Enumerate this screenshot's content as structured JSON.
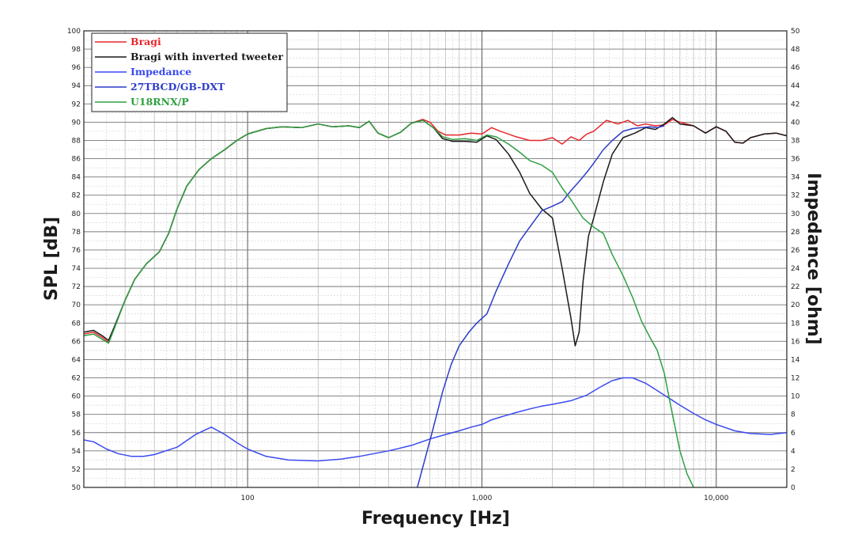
{
  "chart_data": {
    "type": "line",
    "title": "",
    "xlabel": "Frequency [Hz]",
    "ylabel": "SPL [dB]",
    "ylabel_right": "Impedance [ohm]",
    "x_scale": "log",
    "xlim": [
      20,
      20000
    ],
    "ylim": [
      50,
      100
    ],
    "ylim_right": [
      0,
      50
    ],
    "x_tick_labels": [
      {
        "x": 100,
        "label": "100"
      },
      {
        "x": 1000,
        "label": "1,000"
      },
      {
        "x": 10000,
        "label": "10,000"
      }
    ],
    "y_ticks": [
      50,
      52,
      54,
      56,
      58,
      60,
      62,
      64,
      66,
      68,
      70,
      72,
      74,
      76,
      78,
      80,
      82,
      84,
      86,
      88,
      90,
      92,
      94,
      96,
      98,
      100
    ],
    "y_ticks_right": [
      0,
      2,
      4,
      6,
      8,
      10,
      12,
      14,
      16,
      18,
      20,
      22,
      24,
      26,
      28,
      30,
      32,
      34,
      36,
      38,
      40,
      42,
      44,
      46,
      48,
      50
    ],
    "grid": true,
    "legend_position": "top-left",
    "series": [
      {
        "name": "Bragi",
        "axis": "left",
        "color": "#e8262a",
        "points": [
          [
            20,
            66.8
          ],
          [
            22,
            67
          ],
          [
            24,
            66.4
          ],
          [
            25.5,
            65.9
          ],
          [
            27,
            67.5
          ],
          [
            30,
            70.5
          ],
          [
            33,
            72.8
          ],
          [
            37,
            74.5
          ],
          [
            42,
            75.8
          ],
          [
            46,
            77.8
          ],
          [
            50,
            80.5
          ],
          [
            55,
            83
          ],
          [
            62,
            84.8
          ],
          [
            70,
            86
          ],
          [
            80,
            87
          ],
          [
            90,
            88
          ],
          [
            100,
            88.7
          ],
          [
            120,
            89.3
          ],
          [
            140,
            89.5
          ],
          [
            170,
            89.4
          ],
          [
            200,
            89.8
          ],
          [
            230,
            89.5
          ],
          [
            270,
            89.6
          ],
          [
            300,
            89.4
          ],
          [
            330,
            90.1
          ],
          [
            360,
            88.8
          ],
          [
            400,
            88.3
          ],
          [
            450,
            88.9
          ],
          [
            500,
            89.9
          ],
          [
            560,
            90.3
          ],
          [
            600,
            90.0
          ],
          [
            650,
            89.0
          ],
          [
            700,
            88.6
          ],
          [
            800,
            88.6
          ],
          [
            900,
            88.8
          ],
          [
            1000,
            88.7
          ],
          [
            1100,
            89.4
          ],
          [
            1200,
            89.0
          ],
          [
            1400,
            88.4
          ],
          [
            1600,
            88.0
          ],
          [
            1800,
            88.0
          ],
          [
            2000,
            88.3
          ],
          [
            2200,
            87.6
          ],
          [
            2400,
            88.4
          ],
          [
            2600,
            88.0
          ],
          [
            2800,
            88.7
          ],
          [
            3000,
            89.0
          ],
          [
            3400,
            90.2
          ],
          [
            3800,
            89.8
          ],
          [
            4200,
            90.2
          ],
          [
            4600,
            89.6
          ],
          [
            5000,
            89.8
          ],
          [
            5500,
            89.6
          ],
          [
            6000,
            89.7
          ],
          [
            6500,
            90.3
          ],
          [
            7000,
            90.0
          ],
          [
            8000,
            89.6
          ],
          [
            9000,
            88.8
          ],
          [
            10000,
            89.5
          ],
          [
            11000,
            89.0
          ],
          [
            12000,
            87.8
          ],
          [
            13000,
            87.7
          ],
          [
            14000,
            88.3
          ],
          [
            16000,
            88.7
          ],
          [
            18000,
            88.8
          ],
          [
            20000,
            88.5
          ]
        ]
      },
      {
        "name": "Bragi with inverted tweeter",
        "axis": "left",
        "color": "#1a1a1a",
        "points": [
          [
            20,
            67
          ],
          [
            22,
            67.2
          ],
          [
            24,
            66.6
          ],
          [
            25.5,
            66.1
          ],
          [
            27,
            67.6
          ],
          [
            30,
            70.5
          ],
          [
            33,
            72.8
          ],
          [
            37,
            74.5
          ],
          [
            42,
            75.8
          ],
          [
            46,
            77.8
          ],
          [
            50,
            80.5
          ],
          [
            55,
            83
          ],
          [
            62,
            84.8
          ],
          [
            70,
            86
          ],
          [
            80,
            87
          ],
          [
            90,
            88
          ],
          [
            100,
            88.7
          ],
          [
            120,
            89.3
          ],
          [
            140,
            89.5
          ],
          [
            170,
            89.4
          ],
          [
            200,
            89.8
          ],
          [
            230,
            89.5
          ],
          [
            270,
            89.6
          ],
          [
            300,
            89.4
          ],
          [
            330,
            90.1
          ],
          [
            360,
            88.8
          ],
          [
            400,
            88.3
          ],
          [
            450,
            88.9
          ],
          [
            500,
            89.9
          ],
          [
            560,
            90.2
          ],
          [
            620,
            89.4
          ],
          [
            680,
            88.2
          ],
          [
            750,
            87.9
          ],
          [
            850,
            87.9
          ],
          [
            950,
            87.8
          ],
          [
            1050,
            88.5
          ],
          [
            1150,
            88.1
          ],
          [
            1300,
            86.5
          ],
          [
            1450,
            84.5
          ],
          [
            1600,
            82.2
          ],
          [
            1800,
            80.5
          ],
          [
            2000,
            79.5
          ],
          [
            2200,
            74
          ],
          [
            2400,
            68.5
          ],
          [
            2500,
            65.5
          ],
          [
            2600,
            67
          ],
          [
            2700,
            72.5
          ],
          [
            2850,
            77.5
          ],
          [
            3000,
            79.5
          ],
          [
            3300,
            83.5
          ],
          [
            3600,
            86.5
          ],
          [
            4000,
            88.3
          ],
          [
            4500,
            88.8
          ],
          [
            5000,
            89.4
          ],
          [
            5500,
            89.2
          ],
          [
            6000,
            89.8
          ],
          [
            6500,
            90.5
          ],
          [
            7000,
            89.8
          ],
          [
            8000,
            89.6
          ],
          [
            9000,
            88.8
          ],
          [
            10000,
            89.5
          ],
          [
            11000,
            89.0
          ],
          [
            12000,
            87.8
          ],
          [
            13000,
            87.7
          ],
          [
            14000,
            88.3
          ],
          [
            16000,
            88.7
          ],
          [
            18000,
            88.8
          ],
          [
            20000,
            88.5
          ]
        ]
      },
      {
        "name": "Impedance",
        "axis": "right",
        "color": "#3a4af0",
        "points": [
          [
            20,
            5.2
          ],
          [
            22,
            5.0
          ],
          [
            25,
            4.2
          ],
          [
            28,
            3.7
          ],
          [
            32,
            3.4
          ],
          [
            36,
            3.4
          ],
          [
            40,
            3.6
          ],
          [
            50,
            4.4
          ],
          [
            60,
            5.8
          ],
          [
            70,
            6.6
          ],
          [
            80,
            5.8
          ],
          [
            90,
            4.9
          ],
          [
            100,
            4.2
          ],
          [
            120,
            3.4
          ],
          [
            150,
            3.0
          ],
          [
            200,
            2.9
          ],
          [
            250,
            3.1
          ],
          [
            300,
            3.4
          ],
          [
            400,
            4.0
          ],
          [
            500,
            4.6
          ],
          [
            600,
            5.3
          ],
          [
            700,
            5.8
          ],
          [
            800,
            6.2
          ],
          [
            900,
            6.6
          ],
          [
            1000,
            6.9
          ],
          [
            1100,
            7.4
          ],
          [
            1200,
            7.7
          ],
          [
            1400,
            8.2
          ],
          [
            1600,
            8.6
          ],
          [
            1800,
            8.9
          ],
          [
            2000,
            9.1
          ],
          [
            2400,
            9.5
          ],
          [
            2800,
            10.1
          ],
          [
            3200,
            11.0
          ],
          [
            3600,
            11.7
          ],
          [
            4000,
            12.0
          ],
          [
            4400,
            12.0
          ],
          [
            5000,
            11.4
          ],
          [
            6000,
            10.1
          ],
          [
            7000,
            9.0
          ],
          [
            8000,
            8.1
          ],
          [
            9000,
            7.4
          ],
          [
            10000,
            6.9
          ],
          [
            12000,
            6.2
          ],
          [
            14000,
            5.9
          ],
          [
            17000,
            5.8
          ],
          [
            20000,
            6.0
          ]
        ]
      },
      {
        "name": "27TBCD/GB-DXT",
        "axis": "left",
        "color": "#2c3cc8",
        "points": [
          [
            530,
            50
          ],
          [
            570,
            53
          ],
          [
            620,
            56.5
          ],
          [
            680,
            60.5
          ],
          [
            740,
            63.5
          ],
          [
            800,
            65.5
          ],
          [
            880,
            67
          ],
          [
            950,
            68
          ],
          [
            1050,
            69
          ],
          [
            1150,
            71.5
          ],
          [
            1300,
            74.5
          ],
          [
            1450,
            77
          ],
          [
            1600,
            78.5
          ],
          [
            1800,
            80.3
          ],
          [
            2000,
            80.8
          ],
          [
            2200,
            81.3
          ],
          [
            2400,
            82.5
          ],
          [
            2600,
            83.5
          ],
          [
            2800,
            84.5
          ],
          [
            3000,
            85.5
          ],
          [
            3300,
            87
          ],
          [
            3600,
            88
          ],
          [
            4000,
            89
          ],
          [
            4400,
            89.3
          ],
          [
            4800,
            89.4
          ],
          [
            5200,
            89.5
          ],
          [
            5600,
            89.4
          ],
          [
            6000,
            89.6
          ]
        ]
      },
      {
        "name": "U18RNX/P",
        "axis": "left",
        "color": "#2fa042",
        "points": [
          [
            20,
            66.6
          ],
          [
            22,
            66.8
          ],
          [
            24,
            66.2
          ],
          [
            25.5,
            65.8
          ],
          [
            27,
            67.4
          ],
          [
            30,
            70.5
          ],
          [
            33,
            72.8
          ],
          [
            37,
            74.5
          ],
          [
            42,
            75.8
          ],
          [
            46,
            77.8
          ],
          [
            50,
            80.5
          ],
          [
            55,
            83
          ],
          [
            62,
            84.8
          ],
          [
            70,
            86
          ],
          [
            80,
            87
          ],
          [
            90,
            88
          ],
          [
            100,
            88.7
          ],
          [
            120,
            89.3
          ],
          [
            140,
            89.5
          ],
          [
            170,
            89.4
          ],
          [
            200,
            89.8
          ],
          [
            230,
            89.5
          ],
          [
            270,
            89.6
          ],
          [
            300,
            89.4
          ],
          [
            330,
            90.1
          ],
          [
            360,
            88.8
          ],
          [
            400,
            88.3
          ],
          [
            450,
            88.9
          ],
          [
            500,
            89.9
          ],
          [
            560,
            90.2
          ],
          [
            620,
            89.4
          ],
          [
            680,
            88.4
          ],
          [
            750,
            88.1
          ],
          [
            850,
            88.2
          ],
          [
            950,
            88.0
          ],
          [
            1050,
            88.6
          ],
          [
            1150,
            88.4
          ],
          [
            1300,
            87.6
          ],
          [
            1450,
            86.7
          ],
          [
            1600,
            85.8
          ],
          [
            1800,
            85.3
          ],
          [
            2000,
            84.5
          ],
          [
            2200,
            82.8
          ],
          [
            2400,
            81.5
          ],
          [
            2700,
            79.5
          ],
          [
            3000,
            78.5
          ],
          [
            3300,
            77.8
          ],
          [
            3600,
            75.5
          ],
          [
            4000,
            73.2
          ],
          [
            4400,
            70.8
          ],
          [
            4800,
            68.2
          ],
          [
            5200,
            66.5
          ],
          [
            5600,
            65
          ],
          [
            6000,
            62.5
          ],
          [
            6500,
            58
          ],
          [
            7000,
            54
          ],
          [
            7500,
            51.5
          ],
          [
            8000,
            50
          ]
        ]
      }
    ]
  }
}
